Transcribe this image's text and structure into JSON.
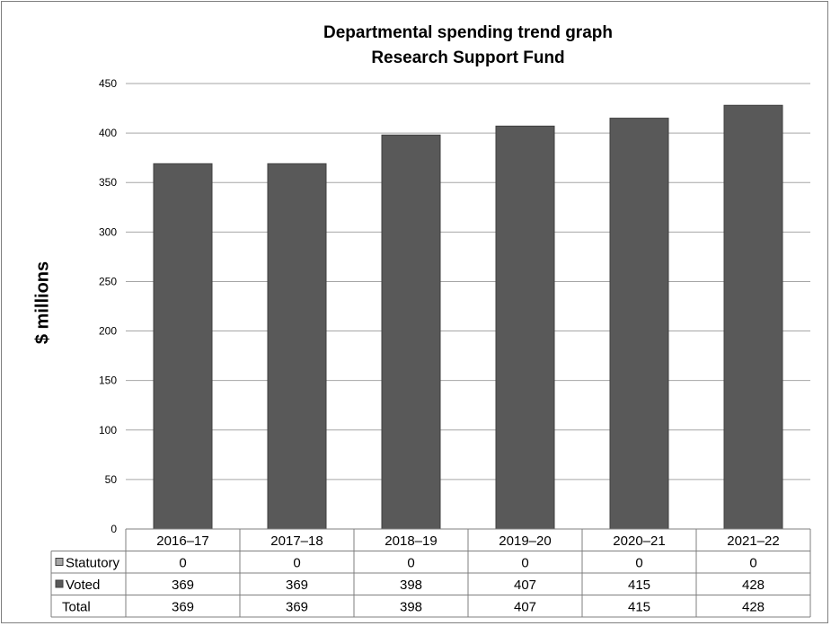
{
  "chart_data": {
    "type": "bar",
    "title": "Departmental spending trend graph",
    "subtitle": "Research Support Fund",
    "xlabel": "",
    "ylabel": "$ millions",
    "ylim": [
      0,
      450
    ],
    "yticks": [
      0,
      50,
      100,
      150,
      200,
      250,
      300,
      350,
      400,
      450
    ],
    "grid": true,
    "categories": [
      "2016–17",
      "2017–18",
      "2018–19",
      "2019–20",
      "2020–21",
      "2021–22"
    ],
    "series": [
      {
        "name": "Statutory",
        "values": [
          0,
          0,
          0,
          0,
          0,
          0
        ],
        "color": "#a6a6a6"
      },
      {
        "name": "Voted",
        "values": [
          369,
          369,
          398,
          407,
          415,
          428
        ],
        "color": "#595959"
      }
    ],
    "total": {
      "name": "Total",
      "values": [
        369,
        369,
        398,
        407,
        415,
        428
      ]
    },
    "legend": "data-table"
  }
}
